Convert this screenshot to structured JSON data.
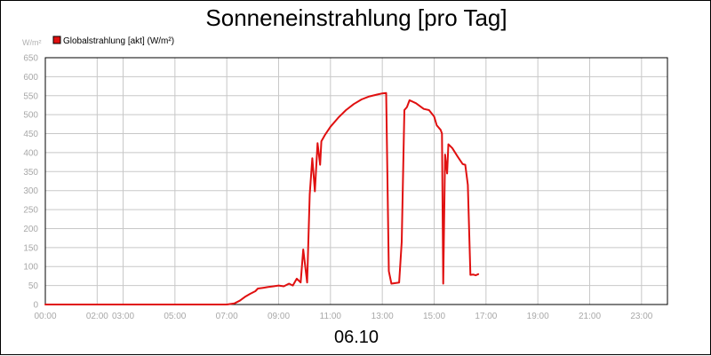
{
  "chart_data": {
    "type": "line",
    "title": "Sonneneinstrahlung [pro Tag]",
    "yunit": "W/m²",
    "xlabel": "06.10",
    "ylim": [
      0,
      650
    ],
    "y_ticks": [
      0,
      50,
      100,
      150,
      200,
      250,
      300,
      350,
      400,
      450,
      500,
      550,
      600,
      650
    ],
    "xlim": [
      0,
      24
    ],
    "x_ticks": [
      {
        "h": 0,
        "label": "00:00"
      },
      {
        "h": 2,
        "label": "02:00"
      },
      {
        "h": 3,
        "label": "03:00"
      },
      {
        "h": 5,
        "label": "05:00"
      },
      {
        "h": 7,
        "label": "07:00"
      },
      {
        "h": 9,
        "label": "09:00"
      },
      {
        "h": 11,
        "label": "11:00"
      },
      {
        "h": 13,
        "label": "13:00"
      },
      {
        "h": 15,
        "label": "15:00"
      },
      {
        "h": 17,
        "label": "17:00"
      },
      {
        "h": 19,
        "label": "19:00"
      },
      {
        "h": 21,
        "label": "21:00"
      },
      {
        "h": 23,
        "label": "23:00"
      }
    ],
    "grid": true,
    "legend_position": "top-left",
    "series": [
      {
        "name": "Globalstrahlung [akt] (W/m²)",
        "color": "#e01010",
        "points": [
          [
            0.0,
            0
          ],
          [
            7.0,
            0
          ],
          [
            7.3,
            3
          ],
          [
            7.5,
            10
          ],
          [
            7.7,
            20
          ],
          [
            7.9,
            28
          ],
          [
            8.1,
            35
          ],
          [
            8.2,
            42
          ],
          [
            8.4,
            44
          ],
          [
            8.6,
            46
          ],
          [
            8.8,
            48
          ],
          [
            9.0,
            50
          ],
          [
            9.2,
            48
          ],
          [
            9.4,
            55
          ],
          [
            9.55,
            50
          ],
          [
            9.7,
            68
          ],
          [
            9.85,
            58
          ],
          [
            9.95,
            145
          ],
          [
            10.1,
            58
          ],
          [
            10.2,
            290
          ],
          [
            10.3,
            385
          ],
          [
            10.4,
            298
          ],
          [
            10.5,
            425
          ],
          [
            10.6,
            368
          ],
          [
            10.65,
            430
          ],
          [
            10.8,
            448
          ],
          [
            11.0,
            468
          ],
          [
            11.3,
            492
          ],
          [
            11.6,
            512
          ],
          [
            11.9,
            528
          ],
          [
            12.2,
            540
          ],
          [
            12.5,
            548
          ],
          [
            12.8,
            553
          ],
          [
            13.0,
            556
          ],
          [
            13.15,
            557
          ],
          [
            13.25,
            88
          ],
          [
            13.35,
            55
          ],
          [
            13.65,
            58
          ],
          [
            13.75,
            165
          ],
          [
            13.85,
            512
          ],
          [
            13.95,
            520
          ],
          [
            14.05,
            538
          ],
          [
            14.3,
            530
          ],
          [
            14.6,
            515
          ],
          [
            14.8,
            512
          ],
          [
            15.0,
            495
          ],
          [
            15.1,
            472
          ],
          [
            15.25,
            460
          ],
          [
            15.3,
            450
          ],
          [
            15.35,
            55
          ],
          [
            15.42,
            395
          ],
          [
            15.5,
            345
          ],
          [
            15.55,
            422
          ],
          [
            15.7,
            412
          ],
          [
            15.9,
            390
          ],
          [
            16.1,
            370
          ],
          [
            16.2,
            368
          ],
          [
            16.3,
            315
          ],
          [
            16.4,
            78
          ],
          [
            16.5,
            79
          ],
          [
            16.6,
            77
          ],
          [
            16.7,
            80
          ]
        ]
      }
    ]
  }
}
